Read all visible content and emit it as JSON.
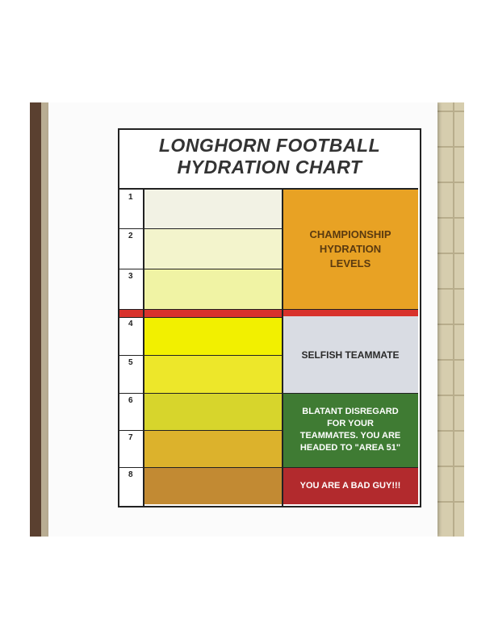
{
  "poster": {
    "title_line1": "LONGHORN FOOTBALL",
    "title_line2": "HYDRATION CHART"
  },
  "rows": [
    {
      "number": "1",
      "color": "#f2f2e4"
    },
    {
      "number": "2",
      "color": "#f3f4cc"
    },
    {
      "number": "3",
      "color": "#f0f3a4"
    },
    {
      "number": "4",
      "color": "#f2f000"
    },
    {
      "number": "5",
      "color": "#ede72a"
    },
    {
      "number": "6",
      "color": "#d7d52c"
    },
    {
      "number": "7",
      "color": "#dcb22c"
    },
    {
      "number": "8",
      "color": "#c28a33"
    }
  ],
  "categories": [
    {
      "label_line1": "CHAMPIONSHIP",
      "label_line2": "HYDRATION",
      "label_line3": "LEVELS",
      "color": "#e8a224",
      "text_color": "#5a3a10"
    },
    {
      "label_line1": "SELFISH TEAMMATE",
      "color": "#d9dce3",
      "text_color": "#2a2a2a"
    },
    {
      "label_line1": "BLATANT DISREGARD",
      "label_line2": "FOR YOUR",
      "label_line3": "TEAMMATES. YOU ARE",
      "label_line4": "HEADED TO \"AREA 51\"",
      "color": "#3f7b33",
      "text_color": "#ffffff"
    },
    {
      "label_line1": "YOU ARE A BAD GUY!!!",
      "color": "#b22a2d",
      "text_color": "#ffffff"
    }
  ],
  "divider_color": "#d8322c"
}
